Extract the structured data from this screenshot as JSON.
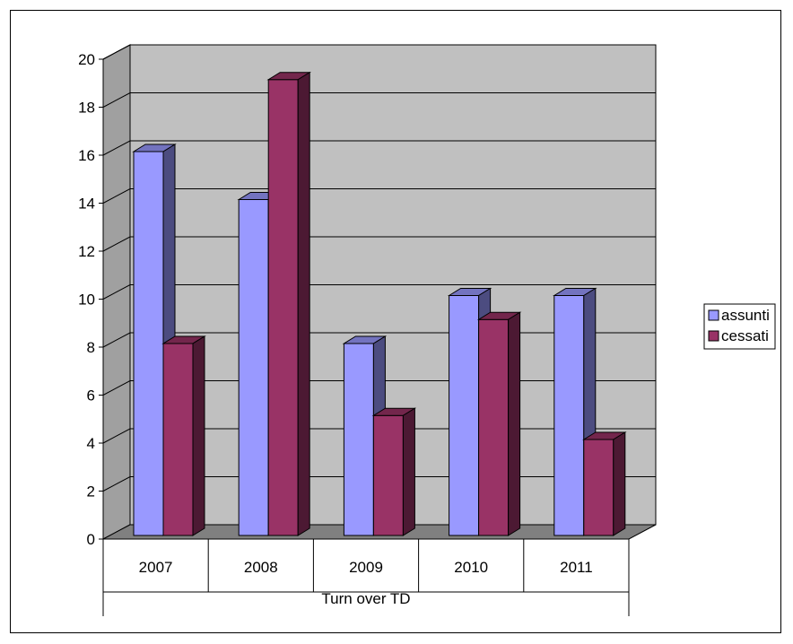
{
  "chart_data": {
    "type": "bar",
    "style": "3d-clustered-column",
    "categories": [
      "2007",
      "2008",
      "2009",
      "2010",
      "2011"
    ],
    "group_label": "Turn over TD",
    "series": [
      {
        "name": "assunti",
        "values": [
          16,
          14,
          8,
          10,
          10
        ],
        "color": "#9999FF",
        "side_color": "#4C4C80",
        "top_color": "#7373BF"
      },
      {
        "name": "cessati",
        "values": [
          8,
          19,
          5,
          9,
          4
        ],
        "color": "#993366",
        "side_color": "#4C1933",
        "top_color": "#73264C"
      }
    ],
    "y_ticks": [
      "0",
      "2",
      "4",
      "6",
      "8",
      "10",
      "12",
      "14",
      "16",
      "18",
      "20"
    ],
    "ylim": [
      0,
      20
    ],
    "grid": true,
    "legend_position": "right",
    "colors": {
      "wall": "#C0C0C0",
      "side_wall": "#A0A0A0",
      "floor": "#808080",
      "grid": "#000000"
    }
  }
}
